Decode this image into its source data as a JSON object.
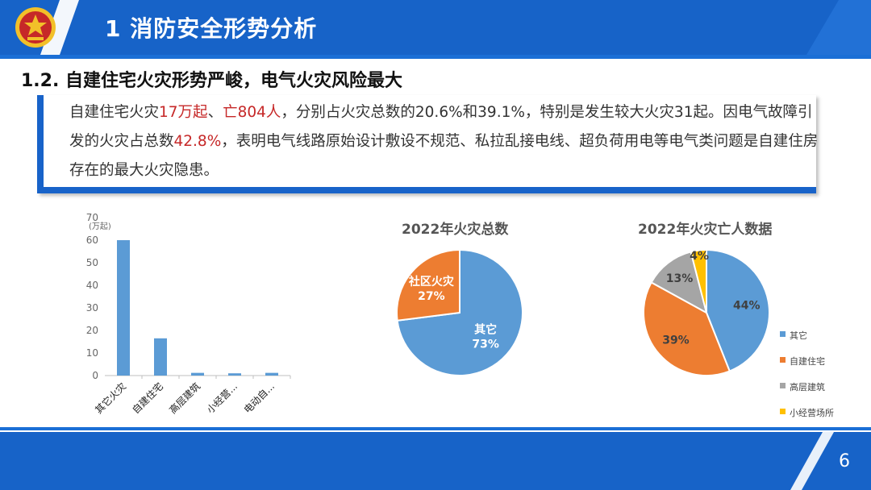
{
  "header": {
    "title": "1  消防安全形势分析"
  },
  "subtitle": "1.2. 自建住宅火灾形势严峻，电气火灾风险最大",
  "paragraph": {
    "p1": "自建住宅火灾",
    "r1": "17万起",
    "p2": "、",
    "r2": "亡804人",
    "p3": "，分别占火灾总数的20.6%和39.1%，特别是发生较大火灾31起。因电气故障引发的火灾占总数",
    "r3": "42.8%",
    "p4": "，表明电气线路原始设计敷设不规范、私拉乱接电线、超负荷用电等电气类问题是自建住房存在的最大火灾隐患。"
  },
  "colors": {
    "brand_blue": "#1763c8",
    "highlight_red": "#c62828",
    "series_blue": "#5b9bd5",
    "series_orange": "#ed7d31",
    "series_gray": "#a5a5a5",
    "series_yellow": "#ffc000"
  },
  "page_number": "6",
  "chart_data": [
    {
      "type": "bar",
      "title": "",
      "ylabel": "(万起)",
      "categories": [
        "其它火灾",
        "自建住宅",
        "高层建筑",
        "小经营...",
        "电动自..."
      ],
      "values": [
        60,
        16.5,
        1.2,
        1.0,
        1.2
      ],
      "ylim": [
        0,
        70
      ],
      "yticks": [
        "0",
        "10",
        "20",
        "30",
        "40",
        "50",
        "60",
        "70"
      ],
      "color": "#5b9bd5",
      "grid": false
    },
    {
      "type": "pie",
      "title": "2022年火灾总数",
      "slices": [
        {
          "name": "其它",
          "label": "73%",
          "value": 73,
          "color": "#5b9bd5"
        },
        {
          "name": "社区火灾",
          "label": "27%",
          "value": 27,
          "color": "#ed7d31"
        }
      ]
    },
    {
      "type": "pie",
      "title": "2022年火灾亡人数据",
      "legend_position": "right",
      "slices": [
        {
          "name": "其它",
          "label": "44%",
          "value": 44,
          "color": "#5b9bd5"
        },
        {
          "name": "自建住宅",
          "label": "39%",
          "value": 39,
          "color": "#ed7d31"
        },
        {
          "name": "高层建筑",
          "label": "13%",
          "value": 13,
          "color": "#a5a5a5"
        },
        {
          "name": "小经营场所",
          "label": "4%",
          "value": 4,
          "color": "#ffc000"
        }
      ]
    }
  ]
}
